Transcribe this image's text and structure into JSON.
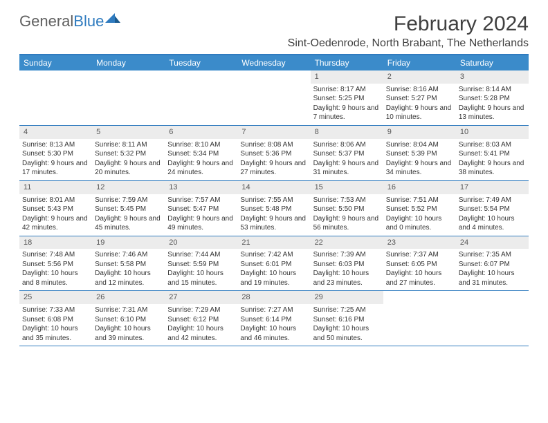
{
  "logo": {
    "text1": "General",
    "text2": "Blue"
  },
  "title": "February 2024",
  "location": "Sint-Oedenrode, North Brabant, The Netherlands",
  "colors": {
    "header_bg": "#3b8bca",
    "border": "#2f7bbf",
    "daynum_bg": "#ececec",
    "text": "#333333",
    "title_text": "#404040"
  },
  "day_labels": [
    "Sunday",
    "Monday",
    "Tuesday",
    "Wednesday",
    "Thursday",
    "Friday",
    "Saturday"
  ],
  "weeks": [
    [
      {
        "n": "",
        "sr": "",
        "ss": "",
        "dl": ""
      },
      {
        "n": "",
        "sr": "",
        "ss": "",
        "dl": ""
      },
      {
        "n": "",
        "sr": "",
        "ss": "",
        "dl": ""
      },
      {
        "n": "",
        "sr": "",
        "ss": "",
        "dl": ""
      },
      {
        "n": "1",
        "sr": "Sunrise: 8:17 AM",
        "ss": "Sunset: 5:25 PM",
        "dl": "Daylight: 9 hours and 7 minutes."
      },
      {
        "n": "2",
        "sr": "Sunrise: 8:16 AM",
        "ss": "Sunset: 5:27 PM",
        "dl": "Daylight: 9 hours and 10 minutes."
      },
      {
        "n": "3",
        "sr": "Sunrise: 8:14 AM",
        "ss": "Sunset: 5:28 PM",
        "dl": "Daylight: 9 hours and 13 minutes."
      }
    ],
    [
      {
        "n": "4",
        "sr": "Sunrise: 8:13 AM",
        "ss": "Sunset: 5:30 PM",
        "dl": "Daylight: 9 hours and 17 minutes."
      },
      {
        "n": "5",
        "sr": "Sunrise: 8:11 AM",
        "ss": "Sunset: 5:32 PM",
        "dl": "Daylight: 9 hours and 20 minutes."
      },
      {
        "n": "6",
        "sr": "Sunrise: 8:10 AM",
        "ss": "Sunset: 5:34 PM",
        "dl": "Daylight: 9 hours and 24 minutes."
      },
      {
        "n": "7",
        "sr": "Sunrise: 8:08 AM",
        "ss": "Sunset: 5:36 PM",
        "dl": "Daylight: 9 hours and 27 minutes."
      },
      {
        "n": "8",
        "sr": "Sunrise: 8:06 AM",
        "ss": "Sunset: 5:37 PM",
        "dl": "Daylight: 9 hours and 31 minutes."
      },
      {
        "n": "9",
        "sr": "Sunrise: 8:04 AM",
        "ss": "Sunset: 5:39 PM",
        "dl": "Daylight: 9 hours and 34 minutes."
      },
      {
        "n": "10",
        "sr": "Sunrise: 8:03 AM",
        "ss": "Sunset: 5:41 PM",
        "dl": "Daylight: 9 hours and 38 minutes."
      }
    ],
    [
      {
        "n": "11",
        "sr": "Sunrise: 8:01 AM",
        "ss": "Sunset: 5:43 PM",
        "dl": "Daylight: 9 hours and 42 minutes."
      },
      {
        "n": "12",
        "sr": "Sunrise: 7:59 AM",
        "ss": "Sunset: 5:45 PM",
        "dl": "Daylight: 9 hours and 45 minutes."
      },
      {
        "n": "13",
        "sr": "Sunrise: 7:57 AM",
        "ss": "Sunset: 5:47 PM",
        "dl": "Daylight: 9 hours and 49 minutes."
      },
      {
        "n": "14",
        "sr": "Sunrise: 7:55 AM",
        "ss": "Sunset: 5:48 PM",
        "dl": "Daylight: 9 hours and 53 minutes."
      },
      {
        "n": "15",
        "sr": "Sunrise: 7:53 AM",
        "ss": "Sunset: 5:50 PM",
        "dl": "Daylight: 9 hours and 56 minutes."
      },
      {
        "n": "16",
        "sr": "Sunrise: 7:51 AM",
        "ss": "Sunset: 5:52 PM",
        "dl": "Daylight: 10 hours and 0 minutes."
      },
      {
        "n": "17",
        "sr": "Sunrise: 7:49 AM",
        "ss": "Sunset: 5:54 PM",
        "dl": "Daylight: 10 hours and 4 minutes."
      }
    ],
    [
      {
        "n": "18",
        "sr": "Sunrise: 7:48 AM",
        "ss": "Sunset: 5:56 PM",
        "dl": "Daylight: 10 hours and 8 minutes."
      },
      {
        "n": "19",
        "sr": "Sunrise: 7:46 AM",
        "ss": "Sunset: 5:58 PM",
        "dl": "Daylight: 10 hours and 12 minutes."
      },
      {
        "n": "20",
        "sr": "Sunrise: 7:44 AM",
        "ss": "Sunset: 5:59 PM",
        "dl": "Daylight: 10 hours and 15 minutes."
      },
      {
        "n": "21",
        "sr": "Sunrise: 7:42 AM",
        "ss": "Sunset: 6:01 PM",
        "dl": "Daylight: 10 hours and 19 minutes."
      },
      {
        "n": "22",
        "sr": "Sunrise: 7:39 AM",
        "ss": "Sunset: 6:03 PM",
        "dl": "Daylight: 10 hours and 23 minutes."
      },
      {
        "n": "23",
        "sr": "Sunrise: 7:37 AM",
        "ss": "Sunset: 6:05 PM",
        "dl": "Daylight: 10 hours and 27 minutes."
      },
      {
        "n": "24",
        "sr": "Sunrise: 7:35 AM",
        "ss": "Sunset: 6:07 PM",
        "dl": "Daylight: 10 hours and 31 minutes."
      }
    ],
    [
      {
        "n": "25",
        "sr": "Sunrise: 7:33 AM",
        "ss": "Sunset: 6:08 PM",
        "dl": "Daylight: 10 hours and 35 minutes."
      },
      {
        "n": "26",
        "sr": "Sunrise: 7:31 AM",
        "ss": "Sunset: 6:10 PM",
        "dl": "Daylight: 10 hours and 39 minutes."
      },
      {
        "n": "27",
        "sr": "Sunrise: 7:29 AM",
        "ss": "Sunset: 6:12 PM",
        "dl": "Daylight: 10 hours and 42 minutes."
      },
      {
        "n": "28",
        "sr": "Sunrise: 7:27 AM",
        "ss": "Sunset: 6:14 PM",
        "dl": "Daylight: 10 hours and 46 minutes."
      },
      {
        "n": "29",
        "sr": "Sunrise: 7:25 AM",
        "ss": "Sunset: 6:16 PM",
        "dl": "Daylight: 10 hours and 50 minutes."
      },
      {
        "n": "",
        "sr": "",
        "ss": "",
        "dl": ""
      },
      {
        "n": "",
        "sr": "",
        "ss": "",
        "dl": ""
      }
    ]
  ]
}
